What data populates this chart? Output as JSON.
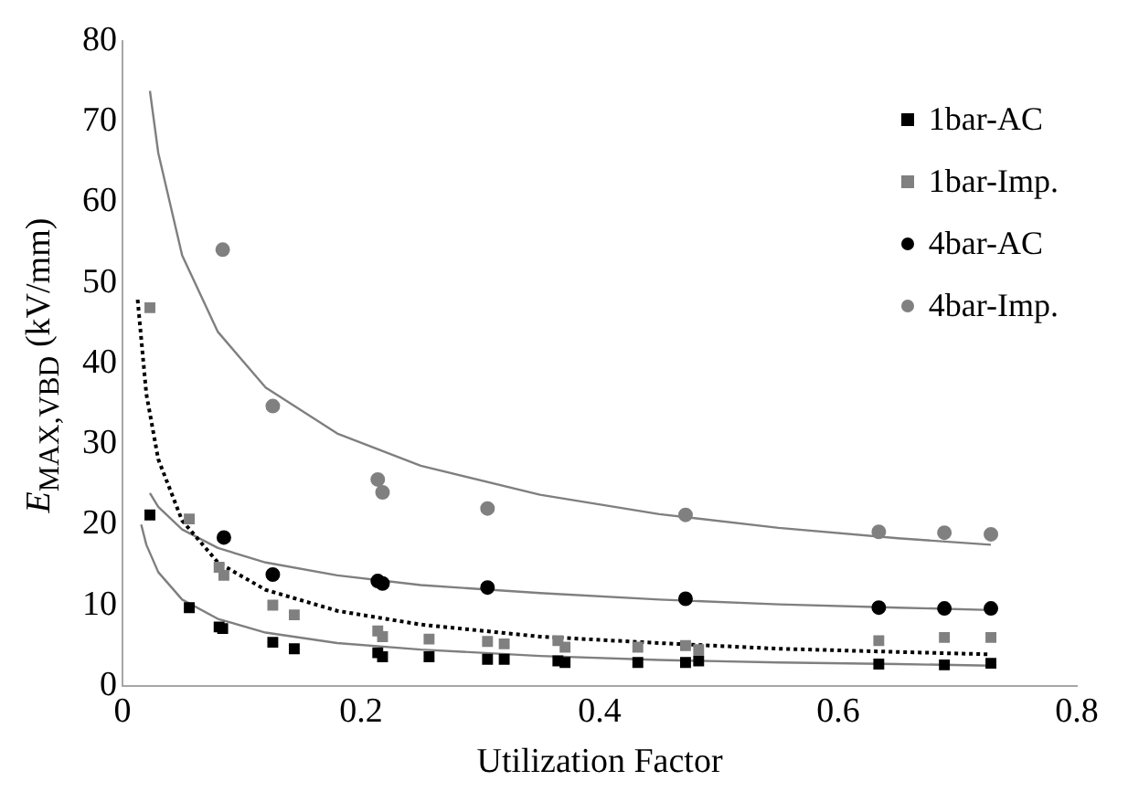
{
  "chart_data": {
    "type": "scatter",
    "xlabel": "Utilization Factor",
    "ylabel": "E$_{MAX,VBD}$ (kV/mm)",
    "xlim": [
      0,
      0.8
    ],
    "xticks": [
      0,
      0.2,
      0.4,
      0.6,
      0.8
    ],
    "ylim": [
      0,
      80
    ],
    "yticks": [
      0,
      10,
      20,
      30,
      40,
      50,
      60,
      70,
      80
    ],
    "grid": false,
    "legend": "top right",
    "series": [
      {
        "name": "1bar-AC",
        "color": "#000000",
        "marker": "square",
        "x": [
          0.023,
          0.056,
          0.081,
          0.084,
          0.126,
          0.144,
          0.214,
          0.218,
          0.257,
          0.306,
          0.32,
          0.365,
          0.371,
          0.432,
          0.472,
          0.483,
          0.634,
          0.689,
          0.728
        ],
        "values": [
          21.2,
          9.7,
          7.3,
          7.1,
          5.4,
          4.6,
          4.1,
          3.6,
          3.6,
          3.3,
          3.3,
          3.1,
          2.9,
          2.9,
          2.9,
          3.1,
          2.7,
          2.6,
          2.8
        ]
      },
      {
        "name": "1bar-Imp.",
        "color": "#808080",
        "marker": "square",
        "x": [
          0.023,
          0.056,
          0.081,
          0.085,
          0.126,
          0.144,
          0.214,
          0.218,
          0.257,
          0.306,
          0.32,
          0.365,
          0.371,
          0.432,
          0.472,
          0.483,
          0.634,
          0.689,
          0.728
        ],
        "values": [
          46.9,
          20.7,
          14.7,
          13.7,
          10.0,
          8.8,
          6.8,
          6.1,
          5.8,
          5.5,
          5.2,
          5.6,
          4.8,
          4.8,
          5.0,
          4.5,
          5.6,
          6.0,
          6.0
        ]
      },
      {
        "name": "4bar-AC",
        "color": "#000000",
        "marker": "circle",
        "x": [
          0.085,
          0.126,
          0.214,
          0.218,
          0.306,
          0.472,
          0.634,
          0.689,
          0.728
        ],
        "values": [
          18.4,
          13.8,
          13.0,
          12.7,
          12.2,
          10.8,
          9.7,
          9.6,
          9.6
        ]
      },
      {
        "name": "4bar-Imp.",
        "color": "#808080",
        "marker": "circle",
        "x": [
          0.084,
          0.126,
          0.214,
          0.218,
          0.306,
          0.472,
          0.634,
          0.689,
          0.728
        ],
        "values": [
          54.1,
          34.7,
          25.6,
          24.0,
          22.0,
          21.2,
          19.1,
          19.0,
          18.8
        ]
      },
      {
        "type": "line",
        "color": "#7f7f7f",
        "line_style": "solid",
        "marker": "none",
        "x": [
          0.0157,
          0.02,
          0.03,
          0.05,
          0.08,
          0.12,
          0.18,
          0.25,
          0.35,
          0.45,
          0.55,
          0.65,
          0.728
        ],
        "values": [
          20.0,
          17.5,
          14.1,
          10.7,
          8.3,
          6.6,
          5.3,
          4.5,
          3.7,
          3.2,
          2.9,
          2.7,
          2.5
        ]
      },
      {
        "type": "line",
        "color": "#000000",
        "line_style": "dotted",
        "marker": "none",
        "x": [
          0.0127,
          0.02,
          0.03,
          0.05,
          0.08,
          0.12,
          0.18,
          0.25,
          0.35,
          0.45,
          0.55,
          0.65,
          0.728
        ],
        "values": [
          47.9,
          36.2,
          28.1,
          20.5,
          15.3,
          11.9,
          9.3,
          7.6,
          6.1,
          5.3,
          4.6,
          4.2,
          3.9
        ]
      },
      {
        "type": "line",
        "color": "#7f7f7f",
        "line_style": "solid",
        "marker": "none",
        "x": [
          0.023,
          0.03,
          0.05,
          0.08,
          0.12,
          0.18,
          0.25,
          0.35,
          0.45,
          0.55,
          0.65,
          0.728
        ],
        "values": [
          23.9,
          22.2,
          19.4,
          17.1,
          15.3,
          13.7,
          12.5,
          11.5,
          10.7,
          10.1,
          9.7,
          9.4
        ]
      },
      {
        "type": "line",
        "color": "#7f7f7f",
        "line_style": "solid",
        "marker": "none",
        "x": [
          0.023,
          0.03,
          0.05,
          0.08,
          0.12,
          0.18,
          0.25,
          0.35,
          0.45,
          0.55,
          0.65,
          0.728
        ],
        "values": [
          73.8,
          66.1,
          53.4,
          43.9,
          37.0,
          31.3,
          27.3,
          23.7,
          21.3,
          19.6,
          18.3,
          17.5
        ]
      }
    ]
  }
}
